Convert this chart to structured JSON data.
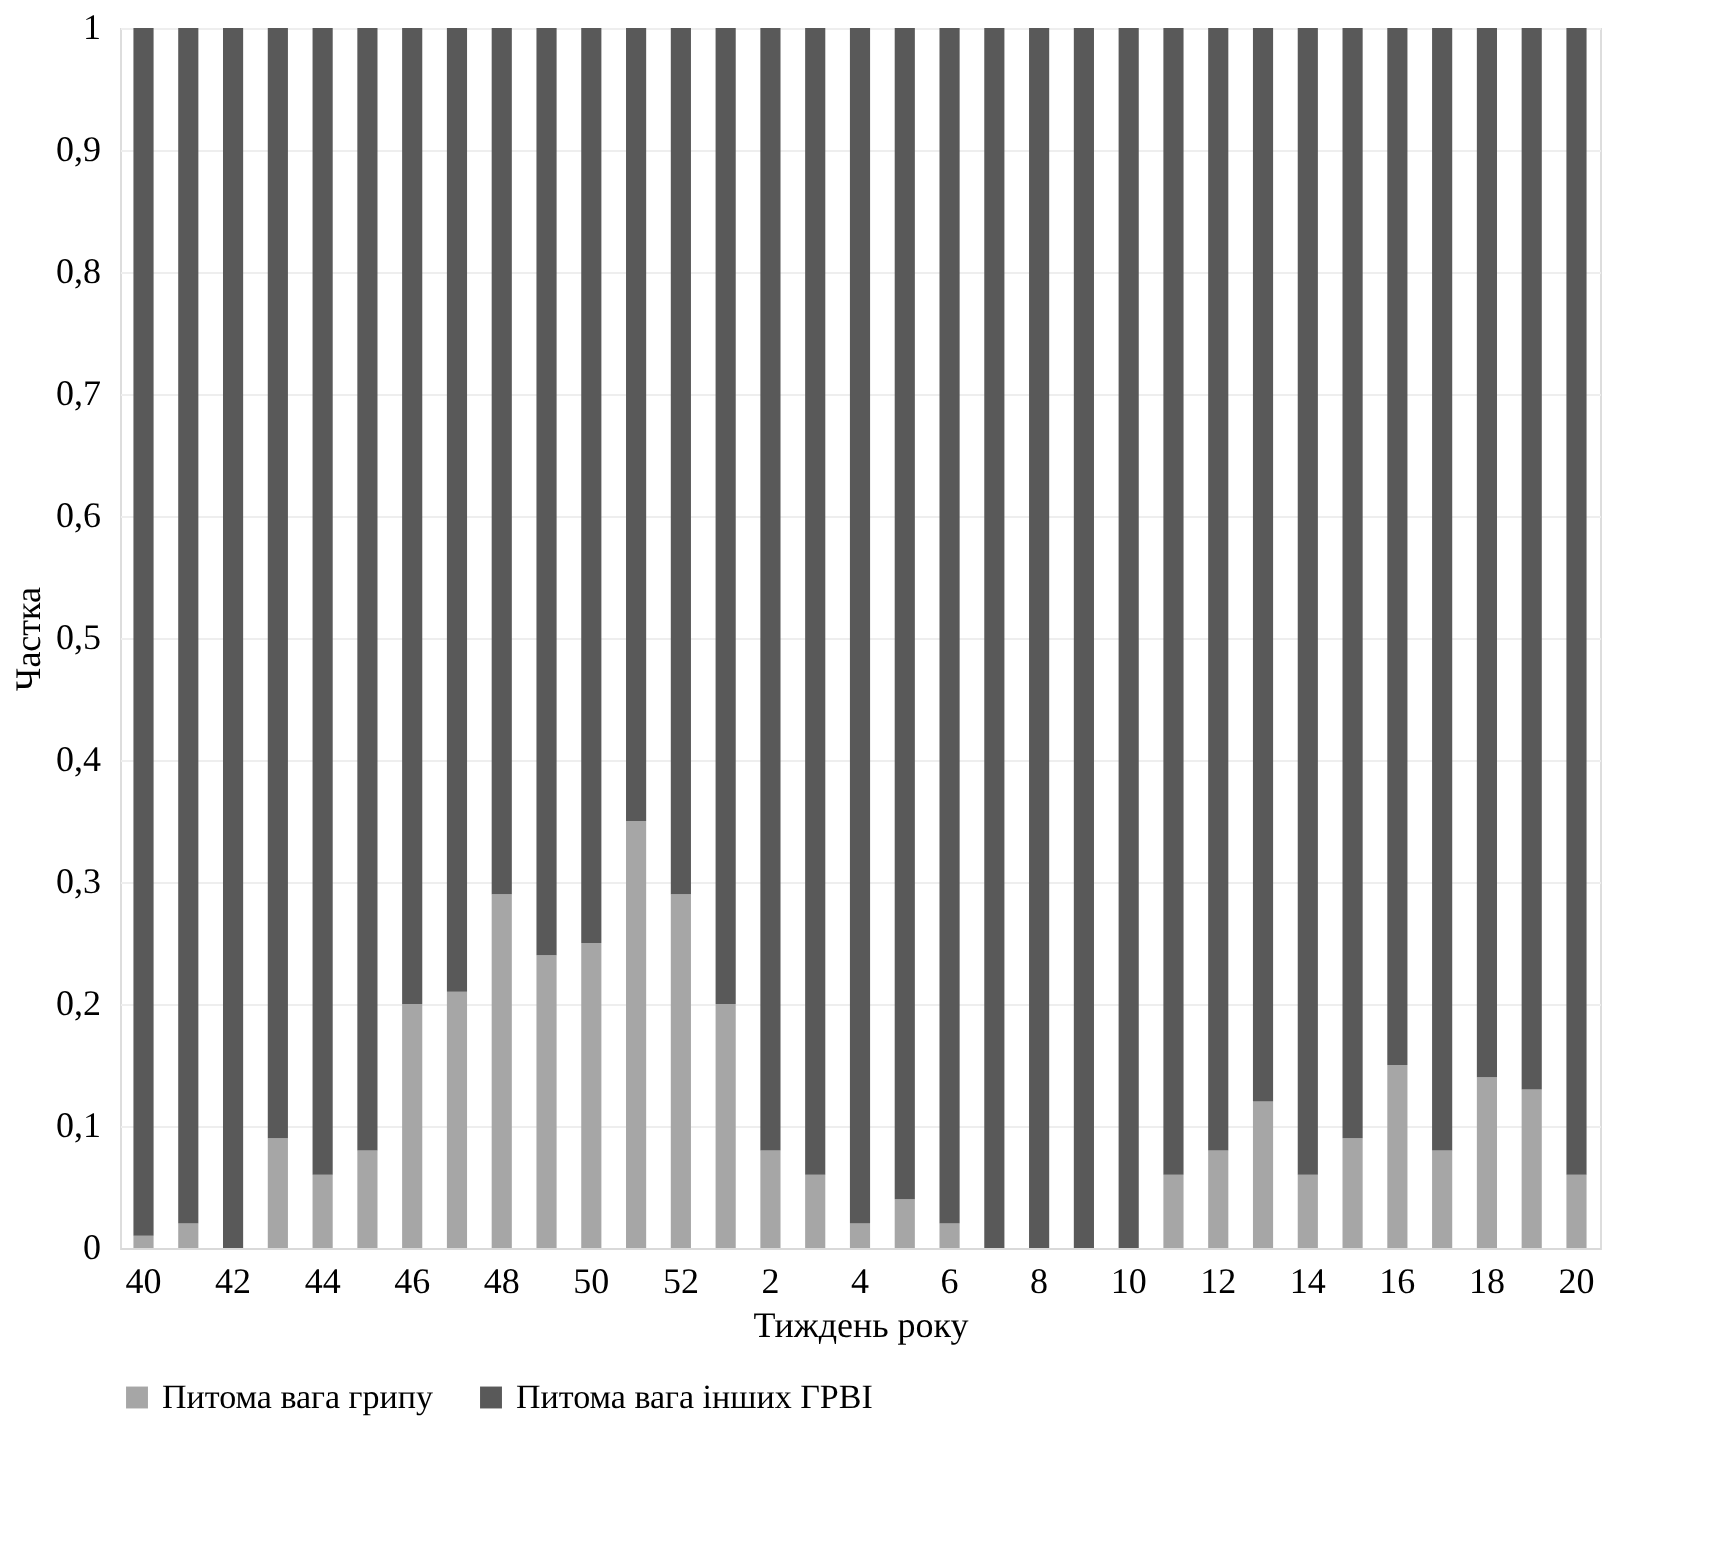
{
  "chart_data": {
    "type": "bar",
    "stacked": true,
    "xlabel": "Тиждень року",
    "ylabel": "Частка",
    "categories": [
      "40",
      null,
      "42",
      null,
      "44",
      null,
      "46",
      null,
      "48",
      null,
      "50",
      null,
      "52",
      null,
      "2",
      null,
      "4",
      null,
      "6",
      null,
      "8",
      null,
      "10",
      null,
      "12",
      null,
      "14",
      null,
      "16",
      null,
      "18",
      null,
      "20"
    ],
    "series": [
      {
        "name": "Питома вага грипу",
        "color": "#a6a6a6",
        "values": [
          0.01,
          0.02,
          0,
          0.09,
          0.06,
          0.08,
          0.2,
          0.21,
          0.29,
          0.24,
          0.25,
          0.35,
          0.29,
          0.2,
          0.08,
          0.06,
          0.02,
          0.04,
          0.02,
          0,
          0,
          0,
          0,
          0.06,
          0.08,
          0.12,
          0.06,
          0.09,
          0.15,
          0.08,
          0.14,
          0.13,
          0.06
        ]
      },
      {
        "name": "Питома вага інших ГРВІ",
        "color": "#595959",
        "values": [
          0.99,
          0.98,
          1,
          0.91,
          0.94,
          0.92,
          0.8,
          0.79,
          0.71,
          0.76,
          0.75,
          0.65,
          0.71,
          0.8,
          0.92,
          0.94,
          0.98,
          0.96,
          0.98,
          1,
          1,
          1,
          1,
          0.94,
          0.92,
          0.88,
          0.94,
          0.91,
          0.85,
          0.92,
          0.86,
          0.87,
          0.94
        ]
      }
    ],
    "ylim": [
      0,
      1
    ],
    "yticks": [
      0,
      {
        "value": 0.1,
        "label": "0,1"
      },
      {
        "value": 0.2,
        "label": "0,2"
      },
      {
        "value": 0.3,
        "label": "0,3"
      },
      {
        "value": 0.4,
        "label": "0,4"
      },
      {
        "value": 0.5,
        "label": "0,5"
      },
      {
        "value": 0.6,
        "label": "0,6"
      },
      {
        "value": 0.7,
        "label": "0,7"
      },
      {
        "value": 0.8,
        "label": "0,8"
      },
      {
        "value": 0.9,
        "label": "0,9"
      },
      1
    ],
    "grid": "y",
    "legend": "bottom"
  }
}
